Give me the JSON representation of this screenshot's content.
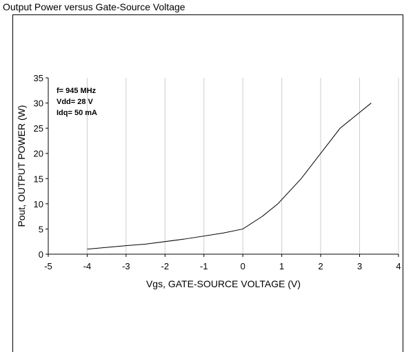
{
  "caption": "Output Power versus Gate-Source Voltage",
  "chart_data": {
    "type": "line",
    "title": "",
    "xlabel": "Vgs, GATE-SOURCE VOLTAGE (V)",
    "ylabel": "Pout, OUTPUT POWER (W)",
    "xlim": [
      -5,
      4
    ],
    "ylim": [
      0,
      35
    ],
    "xticks": [
      -5,
      -4,
      -3,
      -2,
      -1,
      0,
      1,
      2,
      3,
      4
    ],
    "yticks": [
      0,
      5,
      10,
      15,
      20,
      25,
      30,
      35
    ],
    "grid": "vertical",
    "annotations": [
      "f= 945 MHz",
      "Vdd= 28 V",
      "Idq= 50 mA"
    ],
    "series": [
      {
        "x": [
          -4,
          -3,
          -2.5,
          -1.5,
          -0.5,
          0,
          0.5,
          0.9,
          1.5,
          2,
          2.5,
          3.3
        ],
        "y": [
          1,
          1.7,
          2,
          3,
          4.2,
          5,
          7.5,
          10,
          15,
          20,
          25,
          30
        ]
      }
    ],
    "line_color": "#000000",
    "grid_color": "#cccccc"
  }
}
